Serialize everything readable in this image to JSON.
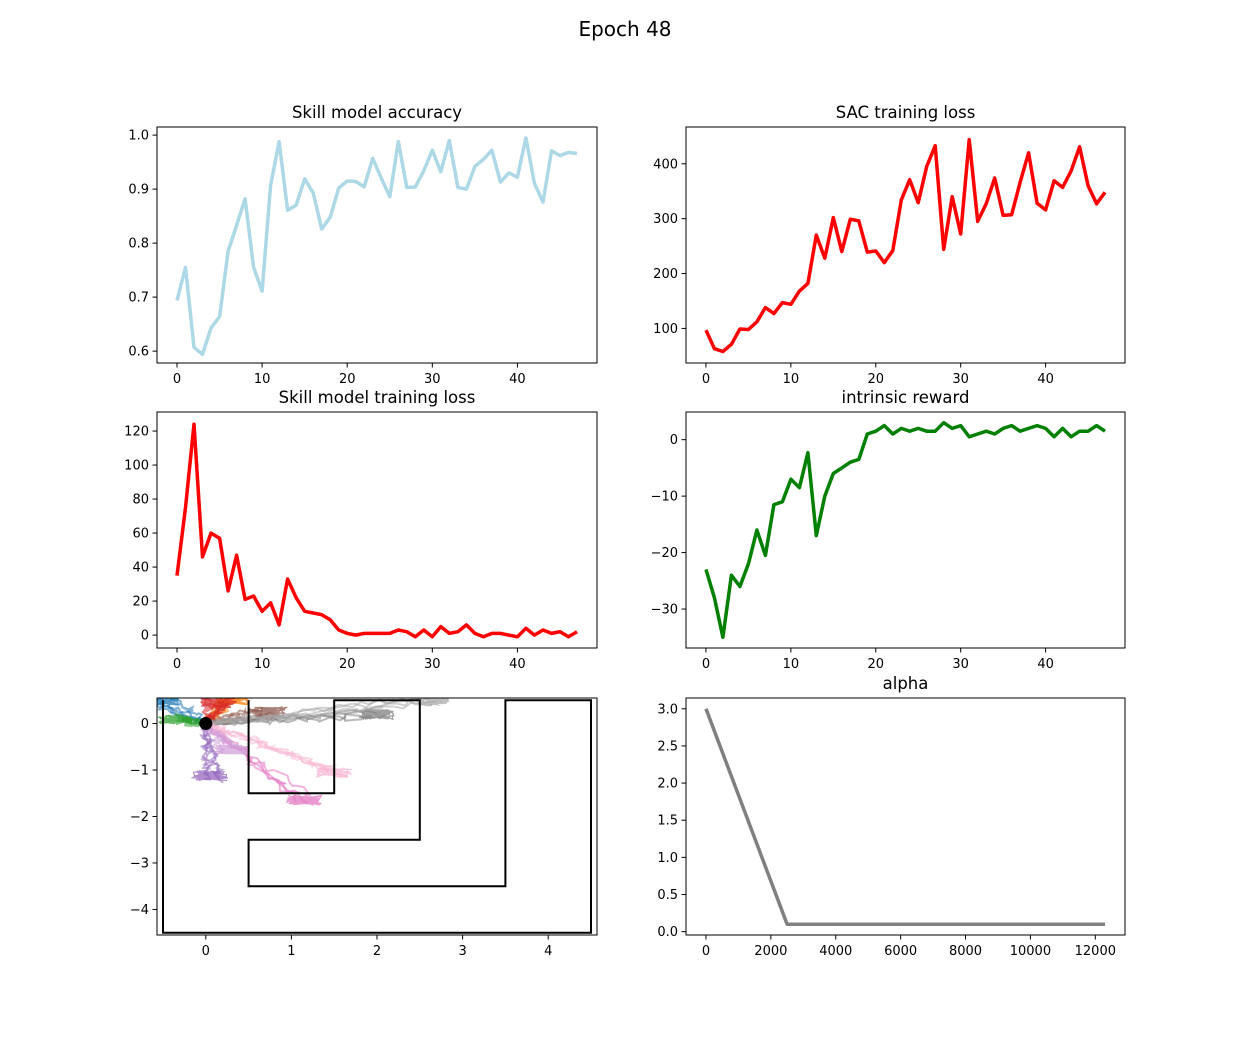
{
  "figure": {
    "suptitle": "Epoch 48"
  },
  "chart_data": [
    {
      "id": "acc",
      "type": "line",
      "title": "Skill model accuracy",
      "xlabel": "",
      "ylabel": "",
      "xlim": [
        -2.35,
        49.35
      ],
      "ylim": [
        0.578,
        1.015
      ],
      "xticks": [
        0,
        10,
        20,
        30,
        40
      ],
      "yticks": [
        0.6,
        0.7,
        0.8,
        0.9,
        1.0
      ],
      "ytick_labels": [
        "0.6",
        "0.7",
        "0.8",
        "0.9",
        "1.0"
      ],
      "grid": false,
      "series": [
        {
          "color": "#add8e6",
          "x0": 0,
          "values": [
            0.694,
            0.755,
            0.607,
            0.594,
            0.643,
            0.664,
            0.785,
            0.833,
            0.882,
            0.755,
            0.711,
            0.907,
            0.988,
            0.861,
            0.87,
            0.919,
            0.893,
            0.826,
            0.848,
            0.902,
            0.915,
            0.914,
            0.904,
            0.957,
            0.92,
            0.886,
            0.988,
            0.903,
            0.904,
            0.934,
            0.972,
            0.932,
            0.99,
            0.903,
            0.9,
            0.942,
            0.955,
            0.972,
            0.913,
            0.93,
            0.922,
            0.995,
            0.911,
            0.876,
            0.971,
            0.962,
            0.968,
            0.966
          ]
        }
      ]
    },
    {
      "id": "sac",
      "type": "line",
      "title": "SAC training loss",
      "xlabel": "",
      "ylabel": "",
      "xlim": [
        -2.35,
        49.35
      ],
      "ylim": [
        37,
        467
      ],
      "xticks": [
        0,
        10,
        20,
        30,
        40
      ],
      "yticks": [
        100,
        200,
        300,
        400
      ],
      "ytick_labels": [
        "100",
        "200",
        "300",
        "400"
      ],
      "grid": false,
      "series": [
        {
          "color": "#ff0000",
          "x0": 0,
          "values": [
            97,
            63,
            58,
            71,
            99,
            98,
            112,
            138,
            127,
            147,
            144,
            168,
            182,
            270,
            228,
            302,
            240,
            299,
            296,
            239,
            241,
            220,
            242,
            334,
            371,
            329,
            395,
            433,
            244,
            340,
            272,
            444,
            295,
            327,
            374,
            306,
            307,
            366,
            420,
            328,
            316,
            369,
            357,
            387,
            431,
            360,
            327,
            348
          ]
        }
      ]
    },
    {
      "id": "skloss",
      "type": "line",
      "title": "Skill model training loss",
      "xlabel": "",
      "ylabel": "",
      "xlim": [
        -2.35,
        49.35
      ],
      "ylim": [
        -7.6,
        131.2
      ],
      "xticks": [
        0,
        10,
        20,
        30,
        40
      ],
      "yticks": [
        0,
        20,
        40,
        60,
        80,
        100,
        120
      ],
      "ytick_labels": [
        "0",
        "20",
        "40",
        "60",
        "80",
        "100",
        "120"
      ],
      "grid": false,
      "series": [
        {
          "color": "#ff0000",
          "x0": 0,
          "values": [
            35,
            75,
            124,
            46,
            60,
            57,
            26,
            47,
            21,
            23,
            14,
            19,
            6,
            33,
            22,
            14,
            13,
            12,
            9,
            3,
            1,
            0,
            1,
            1,
            1,
            1,
            3,
            2,
            -1,
            3,
            -1,
            5,
            1,
            2,
            6,
            1,
            -1,
            1,
            1,
            0,
            -1,
            4,
            0,
            3,
            1,
            2,
            -1,
            2
          ]
        }
      ]
    },
    {
      "id": "reward",
      "type": "line",
      "title": "intrinsic reward",
      "xlabel": "",
      "ylabel": "",
      "xlim": [
        -2.35,
        49.35
      ],
      "ylim": [
        -36.9,
        4.9
      ],
      "xticks": [
        0,
        10,
        20,
        30,
        40
      ],
      "yticks": [
        -30,
        -20,
        -10,
        0
      ],
      "ytick_labels": [
        "−30",
        "−20",
        "−10",
        "0"
      ],
      "grid": false,
      "series": [
        {
          "color": "#008000",
          "x0": 0,
          "values": [
            -23,
            -28,
            -35,
            -24,
            -26,
            -22,
            -16,
            -20.5,
            -11.5,
            -11,
            -7,
            -8.5,
            -2.3,
            -17,
            -10,
            -6,
            -5,
            -4,
            -3.5,
            1,
            1.5,
            2.5,
            1,
            2,
            1.5,
            2,
            1.5,
            1.5,
            3,
            2,
            2.5,
            0.5,
            1,
            1.5,
            1,
            2,
            2.5,
            1.5,
            2,
            2.5,
            2,
            0.5,
            2,
            0.5,
            1.5,
            1.5,
            2.5,
            1.5
          ]
        }
      ]
    },
    {
      "id": "maze",
      "type": "line",
      "title": "",
      "xlabel": "",
      "ylabel": "",
      "xlim": [
        -0.57,
        4.57
      ],
      "ylim": [
        -4.55,
        0.55
      ],
      "xticks": [
        0,
        1,
        2,
        3,
        4
      ],
      "yticks": [
        -4,
        -3,
        -2,
        -1,
        0
      ],
      "ytick_labels": [
        "−4",
        "−3",
        "−2",
        "−1",
        "0"
      ],
      "grid": false,
      "walls": [
        [
          [
            -0.5,
            0.5
          ],
          [
            -0.5,
            -4.5
          ],
          [
            4.5,
            -4.5
          ],
          [
            4.5,
            0.5
          ],
          [
            3.5,
            0.5
          ],
          [
            3.5,
            -3.5
          ],
          [
            0.5,
            -3.5
          ],
          [
            0.5,
            -2.5
          ],
          [
            2.5,
            -2.5
          ],
          [
            2.5,
            0.5
          ],
          [
            1.5,
            0.5
          ],
          [
            1.5,
            -1.5
          ],
          [
            0.5,
            -1.5
          ],
          [
            0.5,
            0.5
          ]
        ]
      ],
      "start": [
        0,
        0
      ],
      "skills": [
        {
          "color": "#1f77b4",
          "end": [
            -0.5,
            0.5
          ]
        },
        {
          "color": "#ff7f0e",
          "end": [
            0.3,
            0.5
          ]
        },
        {
          "color": "#2ca02c",
          "end": [
            -0.35,
            0.1
          ]
        },
        {
          "color": "#d62728",
          "end": [
            0.15,
            0.45
          ]
        },
        {
          "color": "#9467bd",
          "end": [
            0.05,
            -1.12
          ]
        },
        {
          "color": "#8c564b",
          "end": [
            0.75,
            0.25
          ]
        },
        {
          "color": "#e377c2",
          "end": [
            1.15,
            -1.65
          ]
        },
        {
          "color": "#7f7f7f",
          "end": [
            2.0,
            0.2
          ]
        },
        {
          "color": "#aaaaaa",
          "end": [
            2.65,
            0.5
          ]
        },
        {
          "color": "#cfa0d8",
          "end": [
            0.3,
            -0.55
          ]
        },
        {
          "color": "#f7b6d2",
          "end": [
            1.5,
            -1.05
          ]
        }
      ]
    },
    {
      "id": "alpha",
      "type": "line",
      "title": "alpha",
      "xlabel": "",
      "ylabel": "",
      "xlim": [
        -615,
        12915
      ],
      "ylim": [
        -0.045,
        3.145
      ],
      "xticks": [
        0,
        2000,
        4000,
        6000,
        8000,
        10000,
        12000
      ],
      "yticks": [
        0.0,
        0.5,
        1.0,
        1.5,
        2.0,
        2.5,
        3.0
      ],
      "ytick_labels": [
        "0.0",
        "0.5",
        "1.0",
        "1.5",
        "2.0",
        "2.5",
        "3.0"
      ],
      "grid": false,
      "series": [
        {
          "color": "#808080",
          "x": [
            0,
            2500,
            12300
          ],
          "values": [
            3.0,
            0.1,
            0.1
          ]
        }
      ]
    }
  ]
}
